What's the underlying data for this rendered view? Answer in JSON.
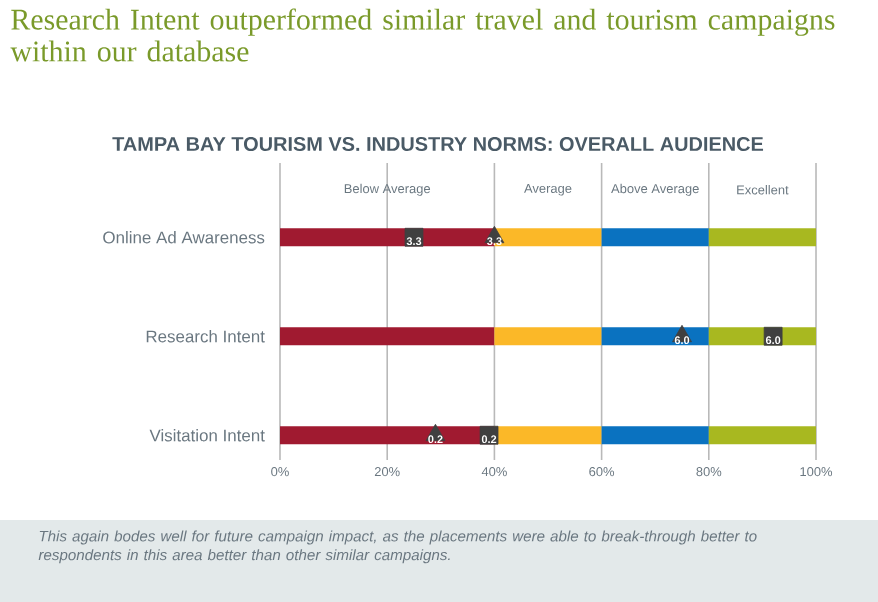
{
  "chart_data": {
    "type": "bar",
    "orientation": "horizontal",
    "stacked": true,
    "title": "Research Intent outperformed similar travel and tourism campaigns within our database",
    "subtitle": "TAMPA BAY TOURISM VS. INDUSTRY NORMS: OVERALL AUDIENCE",
    "categories": [
      "Online Ad Awareness",
      "Research Intent",
      "Visitation Intent"
    ],
    "xlim": [
      0,
      100
    ],
    "xticks": [
      {
        "value": 0,
        "label": "0%"
      },
      {
        "value": 20,
        "label": "20%"
      },
      {
        "value": 40,
        "label": "40%"
      },
      {
        "value": 60,
        "label": "60%"
      },
      {
        "value": 80,
        "label": "80%"
      },
      {
        "value": 100,
        "label": "100%"
      }
    ],
    "grid": "x",
    "series": [
      {
        "name": "Below Average",
        "color": "#a01a30",
        "values": [
          40,
          40,
          40
        ]
      },
      {
        "name": "Average",
        "color": "#fbb828",
        "values": [
          20,
          20,
          20
        ]
      },
      {
        "name": "Above Average",
        "color": "#0a72c0",
        "values": [
          20,
          20,
          20
        ]
      },
      {
        "name": "Excellent",
        "color": "#a8b820",
        "values": [
          20,
          20,
          20
        ]
      },
      {
        "type": "scatter",
        "marker": "square",
        "color": "#404040",
        "values": [
          25,
          92,
          39
        ]
      },
      {
        "type": "scatter",
        "marker": "triangle",
        "color": "#404040",
        "values": [
          40,
          75,
          29
        ]
      }
    ],
    "annotations": [
      {
        "text": "3.3",
        "x": 25,
        "y": "Online Ad Awareness"
      },
      {
        "text": "6.0",
        "x": 92,
        "y": "Research Intent"
      },
      {
        "text": "0.2",
        "x": 39,
        "y": "Visitation Intent"
      },
      {
        "text": "3.3",
        "x": 40,
        "y": "Online Ad Awareness"
      },
      {
        "text": "6.0",
        "x": 75,
        "y": "Research Intent"
      },
      {
        "text": "0.2",
        "x": 29,
        "y": "Visitation Intent"
      },
      "This again bodes well for future campaign impact, as the placements were able to break-through better to respondents in this area better than other similar campaigns."
    ]
  }
}
